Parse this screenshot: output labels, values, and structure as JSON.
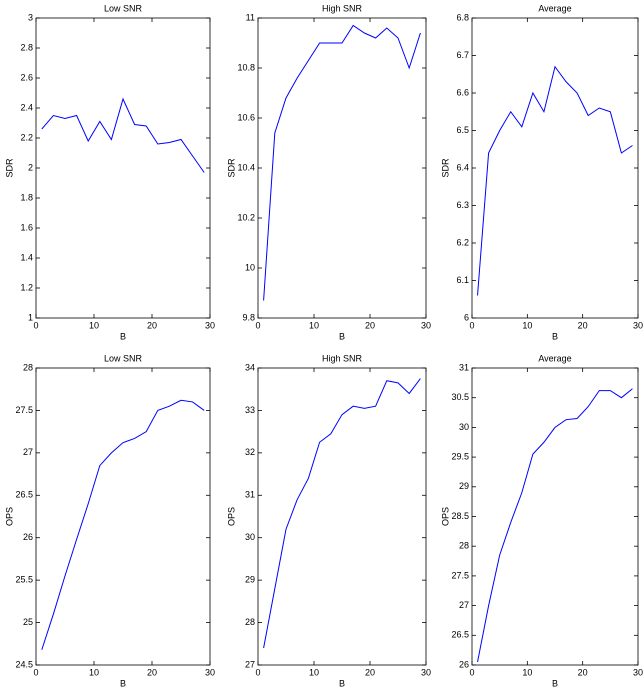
{
  "chart_data": [
    {
      "type": "line",
      "title": "Low SNR",
      "xlabel": "B",
      "ylabel": "SDR",
      "x": [
        1,
        3,
        5,
        7,
        9,
        11,
        13,
        15,
        17,
        19,
        21,
        23,
        25,
        27,
        29
      ],
      "series": [
        {
          "color": "#0000ff",
          "values": [
            2.26,
            2.35,
            2.33,
            2.35,
            2.18,
            2.31,
            2.19,
            2.46,
            2.29,
            2.28,
            2.16,
            2.17,
            2.19,
            2.08,
            1.97
          ]
        }
      ],
      "xlim": [
        0,
        30
      ],
      "xticks": [
        0,
        10,
        20,
        30
      ],
      "ylim": [
        1,
        3
      ],
      "yticks": [
        1,
        1.2,
        1.4,
        1.6,
        1.8,
        2,
        2.2,
        2.4,
        2.6,
        2.8,
        3
      ]
    },
    {
      "type": "line",
      "title": "High SNR",
      "xlabel": "B",
      "ylabel": "SDR",
      "x": [
        1,
        3,
        5,
        7,
        9,
        11,
        13,
        15,
        17,
        19,
        21,
        23,
        25,
        27,
        29
      ],
      "series": [
        {
          "color": "#0000ff",
          "values": [
            9.87,
            10.54,
            10.68,
            10.76,
            10.83,
            10.9,
            10.9,
            10.9,
            10.97,
            10.94,
            10.92,
            10.96,
            10.92,
            10.8,
            10.94
          ]
        }
      ],
      "xlim": [
        0,
        30
      ],
      "xticks": [
        0,
        10,
        20,
        30
      ],
      "ylim": [
        9.8,
        11
      ],
      "yticks": [
        9.8,
        10,
        10.2,
        10.4,
        10.6,
        10.8,
        11
      ]
    },
    {
      "type": "line",
      "title": "Average",
      "xlabel": "B",
      "ylabel": "SDR",
      "x": [
        1,
        3,
        5,
        7,
        9,
        11,
        13,
        15,
        17,
        19,
        21,
        23,
        25,
        27,
        29
      ],
      "series": [
        {
          "color": "#0000ff",
          "values": [
            6.06,
            6.44,
            6.5,
            6.55,
            6.51,
            6.6,
            6.55,
            6.67,
            6.63,
            6.6,
            6.54,
            6.56,
            6.55,
            6.44,
            6.46
          ]
        }
      ],
      "xlim": [
        0,
        30
      ],
      "xticks": [
        0,
        10,
        20,
        30
      ],
      "ylim": [
        6,
        6.8
      ],
      "yticks": [
        6,
        6.1,
        6.2,
        6.3,
        6.4,
        6.5,
        6.6,
        6.7,
        6.8
      ]
    },
    {
      "type": "line",
      "title": "Low SNR",
      "xlabel": "B",
      "ylabel": "OPS",
      "x": [
        1,
        3,
        5,
        7,
        9,
        11,
        13,
        15,
        17,
        19,
        21,
        23,
        25,
        27,
        29
      ],
      "series": [
        {
          "color": "#0000ff",
          "values": [
            24.68,
            25.1,
            25.55,
            25.98,
            26.4,
            26.85,
            27.0,
            27.12,
            27.17,
            27.25,
            27.5,
            27.55,
            27.62,
            27.6,
            27.5
          ]
        }
      ],
      "xlim": [
        0,
        30
      ],
      "xticks": [
        0,
        10,
        20,
        30
      ],
      "ylim": [
        24.5,
        28
      ],
      "yticks": [
        24.5,
        25,
        25.5,
        26,
        26.5,
        27,
        27.5,
        28
      ]
    },
    {
      "type": "line",
      "title": "High SNR",
      "xlabel": "B",
      "ylabel": "OPS",
      "x": [
        1,
        3,
        5,
        7,
        9,
        11,
        13,
        15,
        17,
        19,
        21,
        23,
        25,
        27,
        29
      ],
      "series": [
        {
          "color": "#0000ff",
          "values": [
            27.4,
            28.8,
            30.2,
            30.9,
            31.4,
            32.25,
            32.45,
            32.9,
            33.1,
            33.05,
            33.1,
            33.7,
            33.65,
            33.4,
            33.75
          ]
        }
      ],
      "xlim": [
        0,
        30
      ],
      "xticks": [
        0,
        10,
        20,
        30
      ],
      "ylim": [
        27,
        34
      ],
      "yticks": [
        27,
        28,
        29,
        30,
        31,
        32,
        33,
        34
      ]
    },
    {
      "type": "line",
      "title": "Average",
      "xlabel": "B",
      "ylabel": "OPS",
      "x": [
        1,
        3,
        5,
        7,
        9,
        11,
        13,
        15,
        17,
        19,
        21,
        23,
        25,
        27,
        29
      ],
      "series": [
        {
          "color": "#0000ff",
          "values": [
            26.05,
            27.0,
            27.85,
            28.4,
            28.9,
            29.55,
            29.75,
            30.0,
            30.13,
            30.15,
            30.35,
            30.62,
            30.62,
            30.5,
            30.65
          ]
        }
      ],
      "xlim": [
        0,
        30
      ],
      "xticks": [
        0,
        10,
        20,
        30
      ],
      "ylim": [
        26,
        31
      ],
      "yticks": [
        26,
        26.5,
        27,
        27.5,
        28,
        28.5,
        29,
        29.5,
        30,
        30.5,
        31
      ]
    }
  ]
}
